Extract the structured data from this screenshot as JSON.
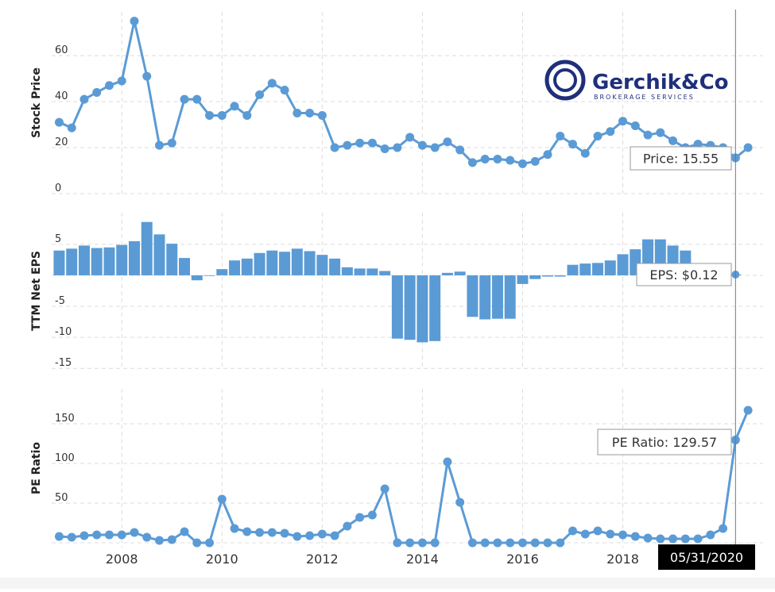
{
  "chart_data": [
    {
      "type": "line",
      "y_label": "Stock Price",
      "color": "#5b9bd5",
      "x": [
        2006.75,
        2007,
        2007.25,
        2007.5,
        2007.75,
        2008,
        2008.25,
        2008.5,
        2008.75,
        2009,
        2009.25,
        2009.5,
        2009.75,
        2010,
        2010.25,
        2010.5,
        2010.75,
        2011,
        2011.25,
        2011.5,
        2011.75,
        2012,
        2012.25,
        2012.5,
        2012.75,
        2013,
        2013.25,
        2013.5,
        2013.75,
        2014,
        2014.25,
        2014.5,
        2014.75,
        2015,
        2015.25,
        2015.5,
        2015.75,
        2016,
        2016.25,
        2016.5,
        2016.75,
        2017,
        2017.25,
        2017.5,
        2017.75,
        2018,
        2018.25,
        2018.5,
        2018.75,
        2019,
        2019.25,
        2019.5,
        2019.75,
        2020,
        2020.25,
        2020.5
      ],
      "values": [
        31,
        28.6,
        41,
        44,
        47,
        49,
        75,
        51,
        21,
        22,
        41,
        41,
        34,
        34,
        38,
        34,
        43,
        48,
        45,
        35,
        35,
        34,
        20,
        21,
        22,
        22,
        19.5,
        20,
        24.5,
        21,
        20,
        22.5,
        19,
        13.5,
        15,
        15,
        14.5,
        13,
        14,
        17,
        25,
        21.5,
        17.5,
        25,
        27,
        31.5,
        29.5,
        25.5,
        26.5,
        23,
        20,
        21.5,
        21,
        20,
        15.55,
        20
      ],
      "xlim": [
        2006.6,
        2020.8
      ],
      "xticks": [
        2008,
        2010,
        2012,
        2014,
        2016,
        2018
      ],
      "ylim": [
        0,
        79
      ],
      "yticks": [
        0,
        20,
        40,
        60
      ],
      "grid": true,
      "tooltip": "Price: 15.55"
    },
    {
      "type": "bar",
      "y_label": "TTM Net EPS",
      "color": "#5b9bd5",
      "x": [
        2006.75,
        2007,
        2007.25,
        2007.5,
        2007.75,
        2008,
        2008.25,
        2008.5,
        2008.75,
        2009,
        2009.25,
        2009.5,
        2009.75,
        2010,
        2010.25,
        2010.5,
        2010.75,
        2011,
        2011.25,
        2011.5,
        2011.75,
        2012,
        2012.25,
        2012.5,
        2012.75,
        2013,
        2013.25,
        2013.5,
        2013.75,
        2014,
        2014.25,
        2014.5,
        2014.75,
        2015,
        2015.25,
        2015.5,
        2015.75,
        2016,
        2016.25,
        2016.5,
        2016.75,
        2017,
        2017.25,
        2017.5,
        2017.75,
        2018,
        2018.25,
        2018.5,
        2018.75,
        2019,
        2019.25,
        2019.5,
        2019.75,
        2020,
        2020.25,
        2020.5
      ],
      "values": [
        4,
        4.3,
        4.8,
        4.4,
        4.5,
        4.9,
        5.5,
        8.6,
        6.6,
        5.1,
        2.8,
        -0.8,
        -0.1,
        1,
        2.4,
        2.7,
        3.6,
        4,
        3.8,
        4.3,
        3.9,
        3.3,
        2.7,
        1.3,
        1.1,
        1.1,
        0.7,
        -10.2,
        -10.4,
        -10.8,
        -10.6,
        0.4,
        0.6,
        -6.7,
        -7.1,
        -7,
        -7,
        -1.4,
        -0.6,
        -0.2,
        -0.2,
        1.7,
        1.9,
        2,
        2.4,
        3.4,
        4.2,
        5.8,
        5.8,
        4.8,
        4,
        0.6,
        0.4,
        0.3,
        0.12,
        null
      ],
      "xlim": [
        2006.6,
        2020.8
      ],
      "xticks": [
        2008,
        2010,
        2012,
        2014,
        2016,
        2018
      ],
      "ylim": [
        -15.1,
        10.1
      ],
      "yticks": [
        -15,
        -10,
        -5,
        0,
        5
      ],
      "grid": true,
      "tooltip": "EPS: $0.12"
    },
    {
      "type": "line",
      "y_label": "PE Ratio",
      "color": "#5b9bd5",
      "x": [
        2006.75,
        2007,
        2007.25,
        2007.5,
        2007.75,
        2008,
        2008.25,
        2008.5,
        2008.75,
        2009,
        2009.25,
        2009.5,
        2009.75,
        2010,
        2010.25,
        2010.5,
        2010.75,
        2011,
        2011.25,
        2011.5,
        2011.75,
        2012,
        2012.25,
        2012.5,
        2012.75,
        2013,
        2013.25,
        2013.5,
        2013.75,
        2014,
        2014.25,
        2014.5,
        2014.75,
        2015,
        2015.25,
        2015.5,
        2015.75,
        2016,
        2016.25,
        2016.5,
        2016.75,
        2017,
        2017.25,
        2017.5,
        2017.75,
        2018,
        2018.25,
        2018.5,
        2018.75,
        2019,
        2019.25,
        2019.5,
        2019.75,
        2020,
        2020.25,
        2020.5
      ],
      "values": [
        8,
        7,
        9,
        10,
        10,
        10,
        13,
        7,
        3,
        4,
        14,
        0,
        0,
        55,
        18,
        14,
        13,
        13,
        12,
        8,
        9,
        11,
        9,
        21,
        32,
        35,
        68,
        0,
        0,
        0,
        0,
        102,
        51,
        0,
        0,
        0,
        0,
        0,
        0,
        0,
        0,
        15,
        11,
        15,
        11,
        10,
        8,
        6,
        5,
        5,
        5,
        5,
        10,
        18,
        129.57,
        167
      ],
      "xlim": [
        2006.6,
        2020.8
      ],
      "xticks": [
        2008,
        2010,
        2012,
        2014,
        2016,
        2018
      ],
      "ylim": [
        -6,
        194
      ],
      "yticks": [
        0,
        50,
        100,
        150
      ],
      "grid": true,
      "tooltip": "PE Ratio: 129.57"
    }
  ],
  "cursor_date": "05/31/2020",
  "logo": {
    "name": "Gerchik&Co",
    "tagline": "BROKERAGE SERVICES"
  }
}
